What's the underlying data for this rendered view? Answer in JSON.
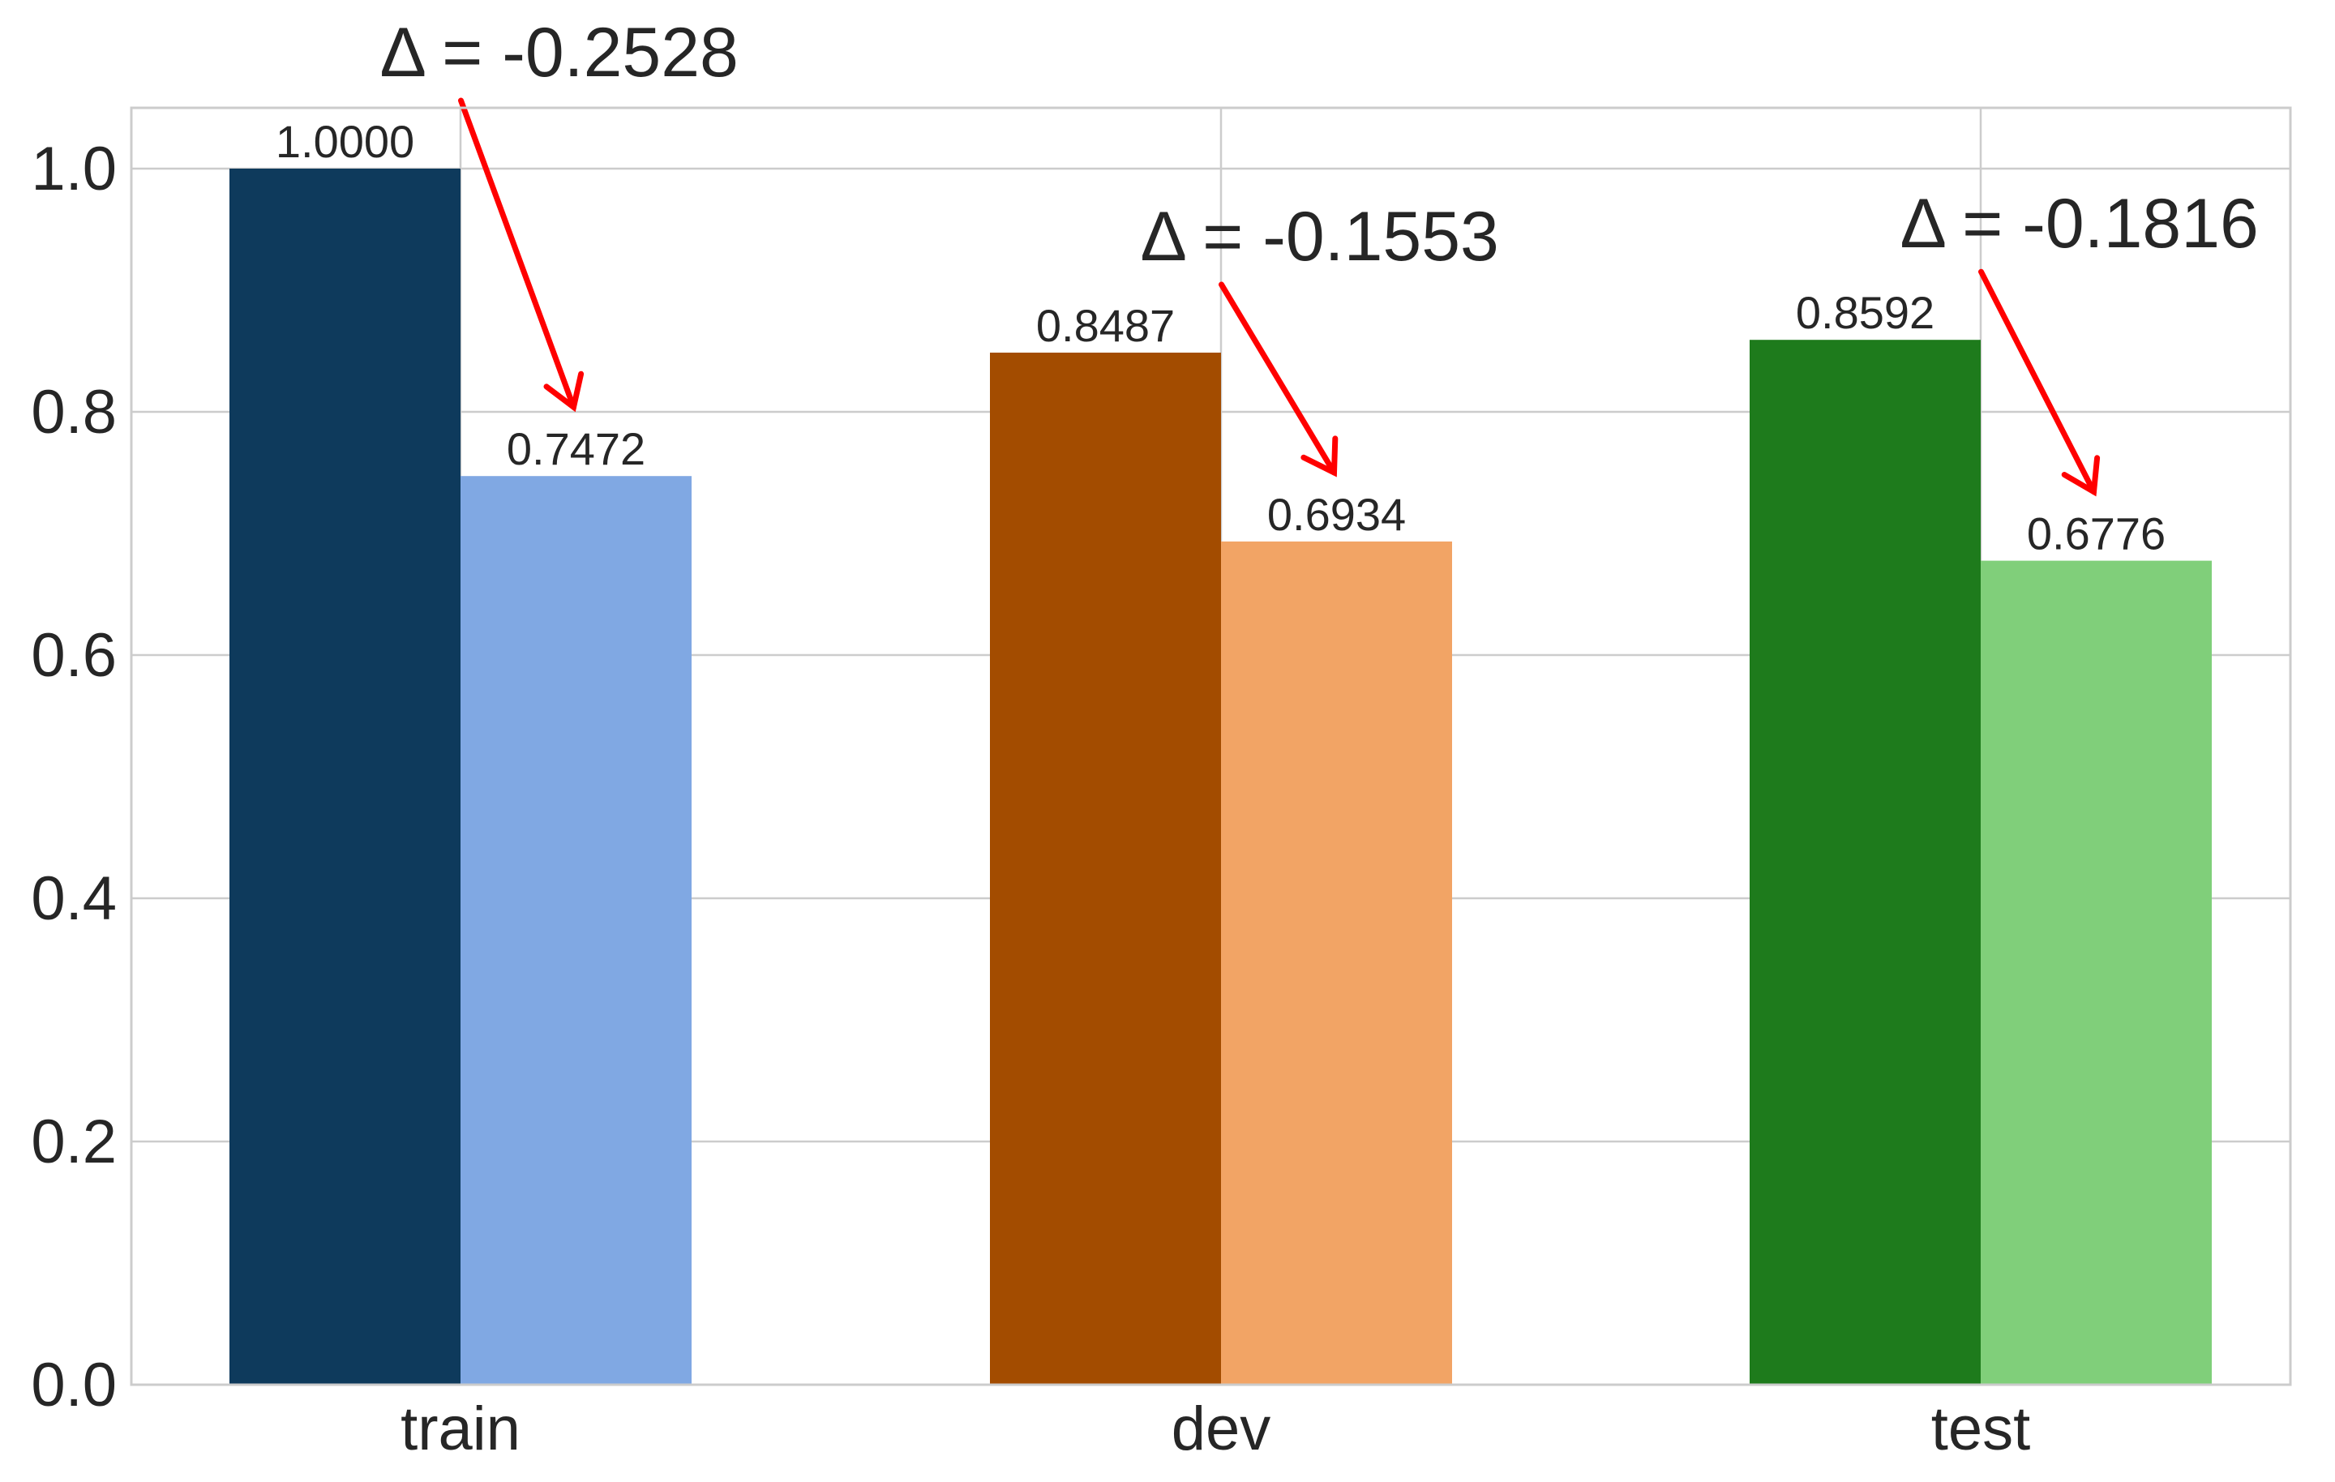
{
  "chart_data": {
    "type": "bar",
    "categories": [
      "train",
      "dev",
      "test"
    ],
    "series": [
      {
        "values": [
          1.0,
          0.8487,
          0.8592
        ],
        "value_labels": [
          "1.0000",
          "0.8487",
          "0.8592"
        ],
        "colors": [
          "#0e3a5c",
          "#a34c00",
          "#1e7b1c"
        ]
      },
      {
        "values": [
          0.7472,
          0.6934,
          0.6776
        ],
        "value_labels": [
          "0.7472",
          "0.6934",
          "0.6776"
        ],
        "colors": [
          "#80a8e3",
          "#f2a465",
          "#80cf7a"
        ]
      }
    ],
    "annotations": [
      {
        "category": "train",
        "text": "Δ = -0.2528"
      },
      {
        "category": "dev",
        "text": "Δ = -0.1553"
      },
      {
        "category": "test",
        "text": "Δ = -0.1816"
      }
    ],
    "ylim": [
      0,
      1.05
    ],
    "yticks": [
      0.0,
      0.2,
      0.4,
      0.6,
      0.8,
      1.0
    ],
    "ytick_labels": [
      "0.0",
      "0.2",
      "0.4",
      "0.6",
      "0.8",
      "1.0"
    ],
    "title": "",
    "xlabel": "",
    "ylabel": "",
    "grid": true,
    "arrow_color": "#ff0000"
  }
}
